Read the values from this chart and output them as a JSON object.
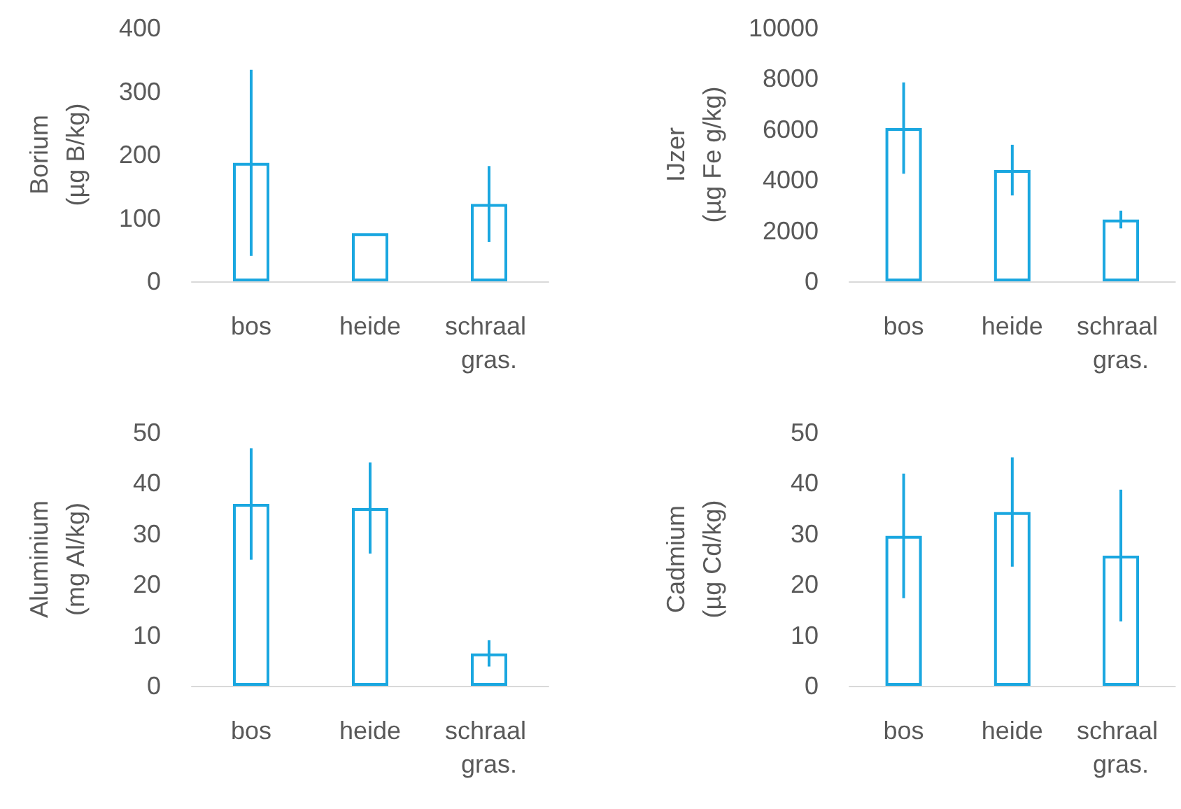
{
  "chart_data": [
    {
      "type": "bar",
      "ylabel": "Borium\n(µg B/kg)",
      "categories": [
        "bos",
        "heide",
        "schraal gras."
      ],
      "series": [
        {
          "color": "#1aa7e0",
          "values": [
            187,
            76,
            122
          ],
          "errors": [
            147,
            null,
            60
          ]
        }
      ],
      "ylim": [
        0,
        400
      ],
      "yticks": [
        0,
        100,
        200,
        300,
        400
      ]
    },
    {
      "type": "bar",
      "ylabel": "IJzer\n(µg Fe g/kg)",
      "categories": [
        "bos",
        "heide",
        "schraal gras."
      ],
      "series": [
        {
          "color": "#1aa7e0",
          "values": [
            6050,
            4390,
            2440
          ],
          "errors": [
            1800,
            1000,
            350
          ]
        }
      ],
      "ylim": [
        0,
        10000
      ],
      "yticks": [
        0,
        2000,
        4000,
        6000,
        8000,
        10000
      ]
    },
    {
      "type": "bar",
      "ylabel": "Aluminium\n(mg Al/kg)",
      "categories": [
        "bos",
        "heide",
        "schraal gras."
      ],
      "series": [
        {
          "color": "#1aa7e0",
          "values": [
            35.9,
            35.1,
            6.4
          ],
          "errors": [
            11,
            9,
            2.6
          ]
        }
      ],
      "ylim": [
        0,
        50
      ],
      "yticks": [
        0,
        10,
        20,
        30,
        40,
        50
      ]
    },
    {
      "type": "bar",
      "ylabel": "Cadmium\n(µg Cd/kg)",
      "categories": [
        "bos",
        "heide",
        "schraal gras."
      ],
      "series": [
        {
          "color": "#1aa7e0",
          "values": [
            29.6,
            34.3,
            25.7
          ],
          "errors": [
            12.3,
            10.8,
            13
          ]
        }
      ],
      "ylim": [
        0,
        50
      ],
      "yticks": [
        0,
        10,
        20,
        30,
        40,
        50
      ]
    }
  ]
}
